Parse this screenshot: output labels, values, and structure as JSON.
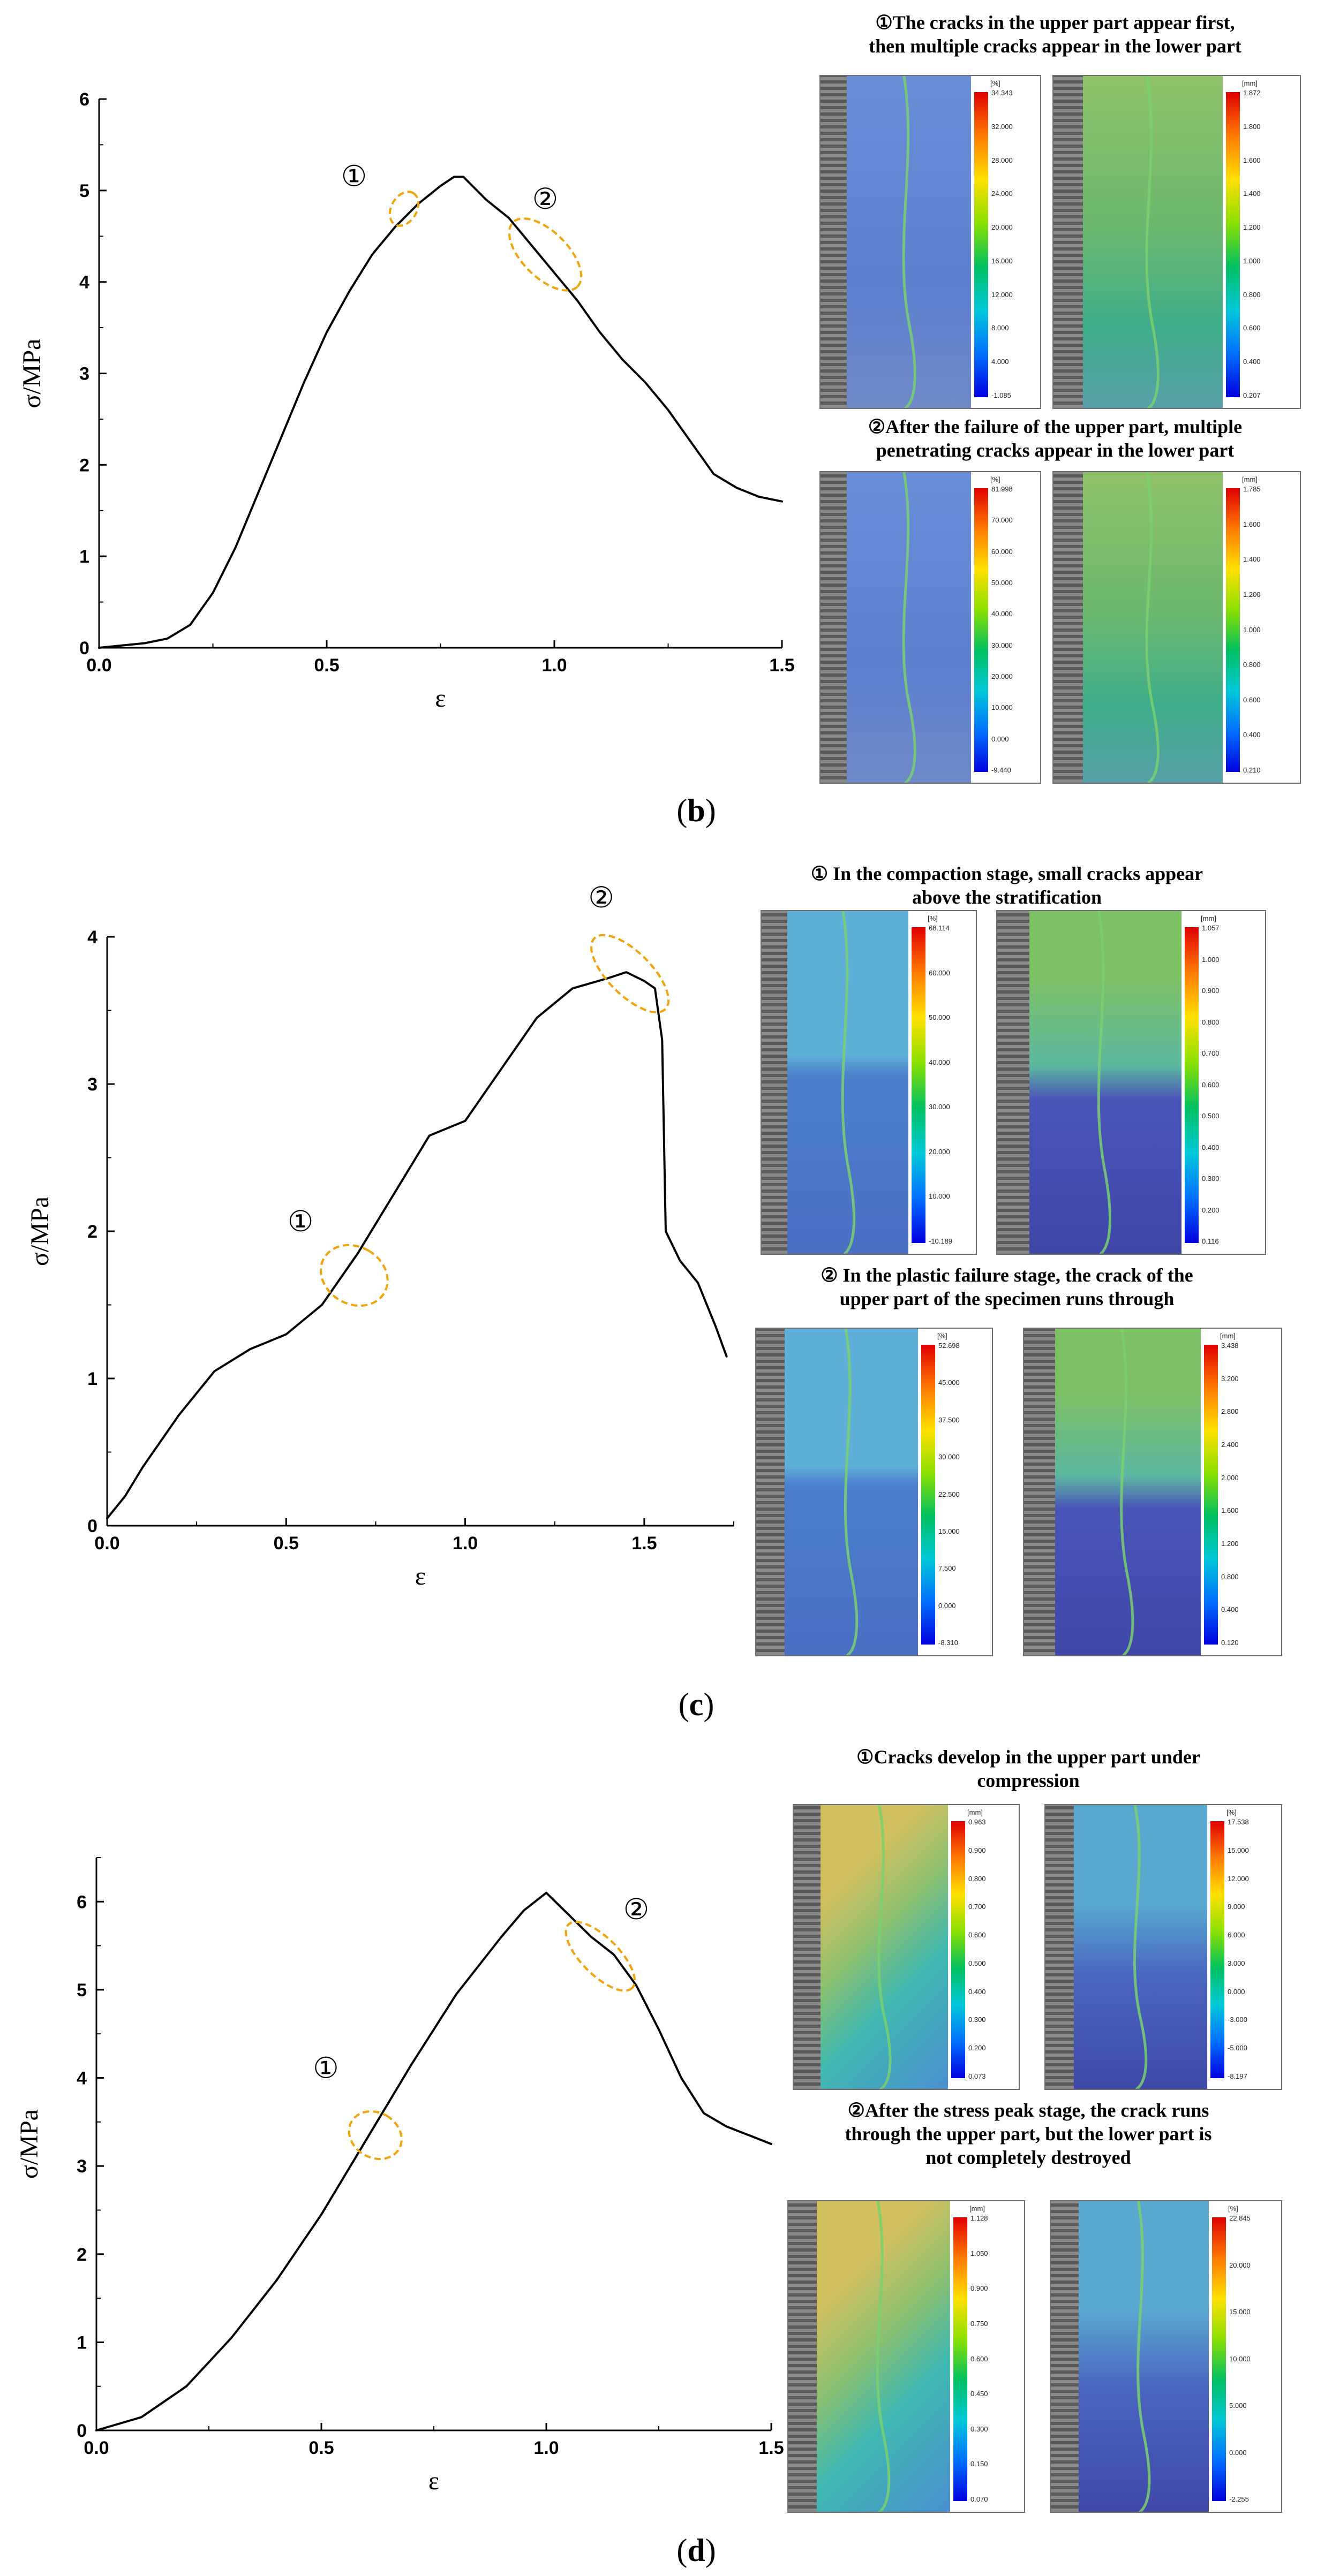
{
  "chart_data": [
    {
      "type": "line",
      "panel": "(b)",
      "xlabel": "ε",
      "ylabel": "σ/MPa",
      "xlim": [
        0,
        1.5
      ],
      "ylim": [
        0,
        6
      ],
      "xticks": [
        "0.0",
        "0.5",
        "1.0",
        "1.5"
      ],
      "yticks": [
        "0",
        "1",
        "2",
        "3",
        "4",
        "5",
        "6"
      ],
      "series": [
        {
          "name": "stress-strain",
          "x": [
            0.0,
            0.1,
            0.15,
            0.2,
            0.25,
            0.3,
            0.35,
            0.4,
            0.45,
            0.5,
            0.55,
            0.6,
            0.65,
            0.7,
            0.75,
            0.78,
            0.8,
            0.85,
            0.9,
            0.95,
            1.0,
            1.05,
            1.1,
            1.15,
            1.2,
            1.25,
            1.3,
            1.35,
            1.4,
            1.45,
            1.5
          ],
          "y": [
            0.0,
            0.05,
            0.1,
            0.25,
            0.6,
            1.1,
            1.7,
            2.3,
            2.9,
            3.45,
            3.9,
            4.3,
            4.6,
            4.85,
            5.05,
            5.15,
            5.15,
            4.9,
            4.7,
            4.4,
            4.1,
            3.8,
            3.45,
            3.15,
            2.9,
            2.6,
            2.25,
            1.9,
            1.75,
            1.65,
            1.6
          ]
        }
      ],
      "annotations": [
        {
          "label": "①",
          "x": 0.67,
          "y": 4.8,
          "rx": 0.04,
          "ry": 0.16,
          "label_x": 0.56,
          "label_y": 5.05
        },
        {
          "label": "②",
          "x": 0.98,
          "y": 4.3,
          "rx": 0.1,
          "ry": 0.38,
          "label_x": 0.98,
          "label_y": 4.8
        }
      ],
      "captions": [
        "①The cracks in the upper part appear first,",
        "then multiple cracks appear in the lower part",
        "②After the failure of the upper part, multiple",
        "penetrating cracks appear in the lower part"
      ],
      "colorbars": [
        {
          "unit": "[%]",
          "ticks": [
            "34.343",
            "32.000",
            "28.000",
            "24.000",
            "20.000",
            "16.000",
            "12.000",
            "8.000",
            "4.000",
            "-1.085"
          ]
        },
        {
          "unit": "[mm]",
          "ticks": [
            "1.872",
            "1.800",
            "1.600",
            "1.400",
            "1.200",
            "1.000",
            "0.800",
            "0.600",
            "0.400",
            "0.207"
          ]
        },
        {
          "unit": "[%]",
          "ticks": [
            "81.998",
            "70.000",
            "60.000",
            "50.000",
            "40.000",
            "30.000",
            "20.000",
            "10.000",
            "0.000",
            "-9.440"
          ]
        },
        {
          "unit": "[mm]",
          "ticks": [
            "1.785",
            "1.600",
            "1.400",
            "1.200",
            "1.000",
            "0.800",
            "0.600",
            "0.400",
            "0.210"
          ]
        }
      ]
    },
    {
      "type": "line",
      "panel": "(c)",
      "xlabel": "ε",
      "ylabel": "σ/MPa",
      "xlim": [
        0,
        1.75
      ],
      "ylim": [
        0,
        4
      ],
      "xticks": [
        "0.0",
        "0.5",
        "1.0",
        "1.5"
      ],
      "yticks": [
        "0",
        "1",
        "2",
        "3",
        "4"
      ],
      "series": [
        {
          "name": "stress-strain",
          "x": [
            0.0,
            0.05,
            0.1,
            0.2,
            0.3,
            0.4,
            0.45,
            0.5,
            0.55,
            0.6,
            0.7,
            0.8,
            0.9,
            1.0,
            1.1,
            1.2,
            1.3,
            1.4,
            1.45,
            1.5,
            1.53,
            1.55,
            1.56,
            1.6,
            1.65,
            1.7,
            1.73
          ],
          "y": [
            0.05,
            0.2,
            0.4,
            0.75,
            1.05,
            1.2,
            1.25,
            1.3,
            1.4,
            1.5,
            1.85,
            2.25,
            2.65,
            2.75,
            3.1,
            3.45,
            3.65,
            3.72,
            3.76,
            3.7,
            3.65,
            3.3,
            2.0,
            1.8,
            1.65,
            1.35,
            1.15
          ]
        }
      ],
      "annotations": [
        {
          "label": "①",
          "x": 0.69,
          "y": 1.7,
          "rx": 0.08,
          "ry": 0.4,
          "label_x": 0.54,
          "label_y": 2.0
        },
        {
          "label": "②",
          "x": 1.46,
          "y": 3.75,
          "rx": 0.14,
          "ry": 0.22,
          "label_x": 1.38,
          "label_y": 4.2
        }
      ],
      "captions": [
        "① In the compaction stage, small cracks appear",
        "above the stratification",
        "② In the plastic failure stage, the crack of the",
        "upper part of the specimen runs through"
      ],
      "colorbars": [
        {
          "unit": "[%]",
          "ticks": [
            "68.114",
            "60.000",
            "50.000",
            "40.000",
            "30.000",
            "20.000",
            "10.000",
            "-10.189"
          ]
        },
        {
          "unit": "[mm]",
          "ticks": [
            "1.057",
            "1.000",
            "0.900",
            "0.800",
            "0.700",
            "0.600",
            "0.500",
            "0.400",
            "0.300",
            "0.200",
            "0.116"
          ]
        },
        {
          "unit": "[%]",
          "ticks": [
            "52.698",
            "45.000",
            "37.500",
            "30.000",
            "22.500",
            "15.000",
            "7.500",
            "0.000",
            "-8.310"
          ]
        },
        {
          "unit": "[mm]",
          "ticks": [
            "3.438",
            "3.200",
            "2.800",
            "2.400",
            "2.000",
            "1.600",
            "1.200",
            "0.800",
            "0.400",
            "0.120"
          ]
        }
      ]
    },
    {
      "type": "line",
      "panel": "(d)",
      "xlabel": "ε",
      "ylabel": "σ/MPa",
      "xlim": [
        0,
        1.5
      ],
      "ylim": [
        0,
        6.5
      ],
      "xticks": [
        "0.0",
        "0.5",
        "1.0",
        "1.5"
      ],
      "yticks": [
        "0",
        "1",
        "2",
        "3",
        "4",
        "5",
        "6"
      ],
      "series": [
        {
          "name": "stress-strain",
          "x": [
            0.0,
            0.1,
            0.2,
            0.3,
            0.4,
            0.5,
            0.6,
            0.7,
            0.8,
            0.9,
            0.95,
            1.0,
            1.05,
            1.1,
            1.15,
            1.2,
            1.25,
            1.3,
            1.35,
            1.4,
            1.45,
            1.5
          ],
          "y": [
            0.0,
            0.15,
            0.5,
            1.05,
            1.7,
            2.45,
            3.3,
            4.15,
            4.95,
            5.6,
            5.9,
            6.1,
            5.85,
            5.6,
            5.4,
            5.05,
            4.55,
            4.0,
            3.6,
            3.45,
            3.35,
            3.25
          ]
        }
      ],
      "annotations": [
        {
          "label": "①",
          "x": 0.62,
          "y": 3.35,
          "rx": 0.05,
          "ry": 0.5,
          "label_x": 0.51,
          "label_y": 4.0
        },
        {
          "label": "②",
          "x": 1.12,
          "y": 5.38,
          "rx": 0.1,
          "ry": 0.3,
          "label_x": 1.2,
          "label_y": 5.8
        }
      ],
      "captions": [
        "①Cracks develop in the upper part under",
        "compression",
        "②After the stress peak stage, the crack runs",
        "through the upper part, but the lower part is",
        "not completely destroyed"
      ],
      "colorbars": [
        {
          "unit": "[mm]",
          "ticks": [
            "0.963",
            "0.900",
            "0.800",
            "0.700",
            "0.600",
            "0.500",
            "0.400",
            "0.300",
            "0.200",
            "0.073"
          ]
        },
        {
          "unit": "[%]",
          "ticks": [
            "17.538",
            "15.000",
            "12.000",
            "9.000",
            "6.000",
            "3.000",
            "0.000",
            "-3.000",
            "-5.000",
            "-8.197"
          ]
        },
        {
          "unit": "[mm]",
          "ticks": [
            "1.128",
            "1.050",
            "0.900",
            "0.750",
            "0.600",
            "0.450",
            "0.300",
            "0.150",
            "0.070"
          ]
        },
        {
          "unit": "[%]",
          "ticks": [
            "22.845",
            "20.000",
            "15.000",
            "10.000",
            "5.000",
            "0.000",
            "-2.255"
          ]
        }
      ]
    }
  ],
  "colors": {
    "curve": "#000000",
    "annotation": "#f0a30a",
    "upper_specimen": "#5a8fd0",
    "lower_specimen": "#3f4aa8",
    "fracture": "#7ad070"
  }
}
